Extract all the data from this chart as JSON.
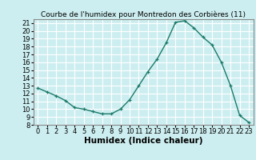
{
  "x": [
    0,
    1,
    2,
    3,
    4,
    5,
    6,
    7,
    8,
    9,
    10,
    11,
    12,
    13,
    14,
    15,
    16,
    17,
    18,
    19,
    20,
    21,
    22,
    23
  ],
  "y": [
    12.7,
    12.2,
    11.7,
    11.1,
    10.2,
    10.0,
    9.7,
    9.4,
    9.4,
    10.0,
    11.2,
    13.0,
    14.8,
    16.4,
    18.5,
    21.1,
    21.3,
    20.4,
    19.2,
    18.2,
    16.0,
    13.0,
    9.2,
    8.3
  ],
  "title": "Courbe de l'humidex pour Montredon des Corbières (11)",
  "xlabel": "Humidex (Indice chaleur)",
  "ylabel": "",
  "xlim": [
    -0.5,
    23.5
  ],
  "ylim": [
    8,
    21.5
  ],
  "yticks": [
    8,
    9,
    10,
    11,
    12,
    13,
    14,
    15,
    16,
    17,
    18,
    19,
    20,
    21
  ],
  "xticks": [
    0,
    1,
    2,
    3,
    4,
    5,
    6,
    7,
    8,
    9,
    10,
    11,
    12,
    13,
    14,
    15,
    16,
    17,
    18,
    19,
    20,
    21,
    22,
    23
  ],
  "line_color": "#1a7a6a",
  "marker": "+",
  "bg_color": "#cdeef0",
  "grid_color": "#ffffff",
  "title_fontsize": 6.5,
  "label_fontsize": 7.5,
  "tick_fontsize": 6
}
